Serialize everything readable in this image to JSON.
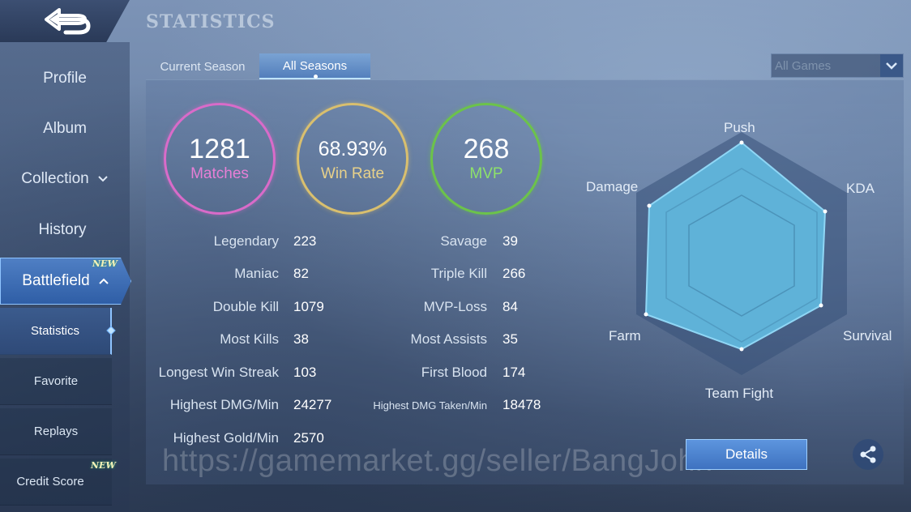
{
  "header": {
    "title": "STATISTICS",
    "tabs": [
      {
        "label": "Current Season",
        "active": false
      },
      {
        "label": "All Seasons",
        "active": true
      }
    ],
    "filter": {
      "selected": "All Games"
    }
  },
  "sidebar": {
    "items": [
      {
        "label": "Profile"
      },
      {
        "label": "Album"
      },
      {
        "label": "Collection"
      },
      {
        "label": "History"
      },
      {
        "label": "Battlefield",
        "badge": "NEW",
        "active": true
      }
    ],
    "sub_items": [
      {
        "label": "Statistics",
        "active": true
      },
      {
        "label": "Favorite"
      },
      {
        "label": "Replays"
      },
      {
        "label": "Credit Score",
        "badge": "NEW"
      }
    ]
  },
  "summary": {
    "matches": {
      "value": "1281",
      "label": "Matches",
      "color": "#d96bc9"
    },
    "win_rate": {
      "value": "68.93%",
      "label": "Win Rate",
      "color": "#d9bf6e"
    },
    "mvp": {
      "value": "268",
      "label": "MVP",
      "color": "#6cc34a"
    }
  },
  "stats_left": [
    {
      "label": "Legendary",
      "value": "223"
    },
    {
      "label": "Maniac",
      "value": "82"
    },
    {
      "label": "Double Kill",
      "value": "1079"
    },
    {
      "label": "Most Kills",
      "value": "38"
    },
    {
      "label": "Longest Win Streak",
      "value": "103"
    },
    {
      "label": "Highest DMG/Min",
      "value": "24277"
    },
    {
      "label": "Highest Gold/Min",
      "value": "2570"
    }
  ],
  "stats_right": [
    {
      "label": "Savage",
      "value": "39"
    },
    {
      "label": "Triple Kill",
      "value": "266"
    },
    {
      "label": "MVP-Loss",
      "value": "84"
    },
    {
      "label": "Most Assists",
      "value": "35"
    },
    {
      "label": "First Blood",
      "value": "174"
    },
    {
      "label": "Highest DMG Taken/Min",
      "value": "18478"
    }
  ],
  "radar": {
    "axes": [
      "Push",
      "KDA",
      "Survival",
      "Team Fight",
      "Farm",
      "Damage"
    ],
    "fill_color": "#5fb2d8"
  },
  "actions": {
    "details_label": "Details"
  },
  "watermark": "https://gamemarket.gg/seller/BangJohn",
  "colors": {
    "accent": "#4f7fc4",
    "active_border": "#8fc4ff"
  }
}
